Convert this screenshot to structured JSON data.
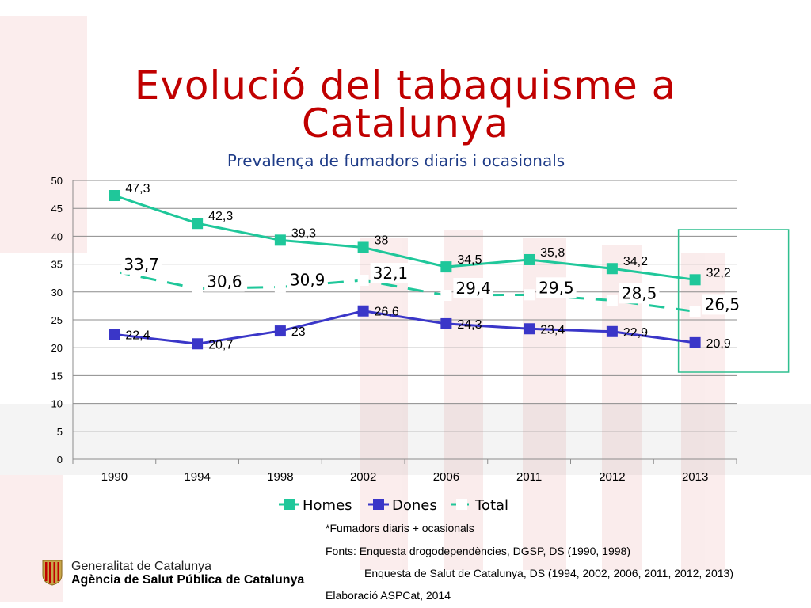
{
  "slide": {
    "title_line1": "Evolució del tabaquisme a",
    "title_line2": "Catalunya",
    "subtitle": "Prevalença de fumadors diaris i ocasionals"
  },
  "chart_data": {
    "type": "line",
    "categories": [
      "1990",
      "1994",
      "1998",
      "2002",
      "2006",
      "2011",
      "2012",
      "2013"
    ],
    "ylim": [
      0,
      50
    ],
    "yticks": [
      0,
      5,
      10,
      15,
      20,
      25,
      30,
      35,
      40,
      45,
      50
    ],
    "grid": true,
    "legend_position": "bottom",
    "series": [
      {
        "name": "Homes",
        "color": "#1fc79a",
        "values": [
          47.3,
          42.3,
          39.3,
          38,
          34.5,
          35.8,
          34.2,
          32.2
        ],
        "labels": [
          "47,3",
          "42,3",
          "39,3",
          "38",
          "34,5",
          "35,8",
          "34,2",
          "32,2"
        ],
        "style": "solid"
      },
      {
        "name": "Dones",
        "color": "#3a36c8",
        "values": [
          22.4,
          20.7,
          23,
          26.6,
          24.3,
          23.4,
          22.9,
          20.9
        ],
        "labels": [
          "22,4",
          "20,7",
          "23",
          "26,6",
          "24,3",
          "23,4",
          "22,9",
          "20,9"
        ],
        "style": "solid"
      },
      {
        "name": "Total",
        "color": "#1fc79a",
        "values": [
          33.7,
          30.6,
          30.9,
          32.1,
          29.4,
          29.5,
          28.5,
          26.5
        ],
        "labels": [
          "33,7",
          "30,6",
          "30,9",
          "32,1",
          "29,4",
          "29,5",
          "28,5",
          "26,5"
        ],
        "style": "dashed"
      }
    ]
  },
  "notes": {
    "footnote": "*Fumadors diaris + ocasionals",
    "source1": "Fonts: Enquesta drogodependències, DGSP, DS (1990, 1998)",
    "source2": "Enquesta de Salut de Catalunya, DS (1994, 2002, 2006, 2011, 2012, 2013)",
    "credit": "Elaboració  ASPCat, 2014"
  },
  "organization": {
    "line1": "Generalitat de Catalunya",
    "line2": "Agència de Salut Pública de Catalunya"
  },
  "colors": {
    "title": "#c00000",
    "subtitle": "#1f3c88",
    "homes": "#1fc79a",
    "dones": "#3a36c8",
    "highlight_box": "#2fbf8f"
  }
}
